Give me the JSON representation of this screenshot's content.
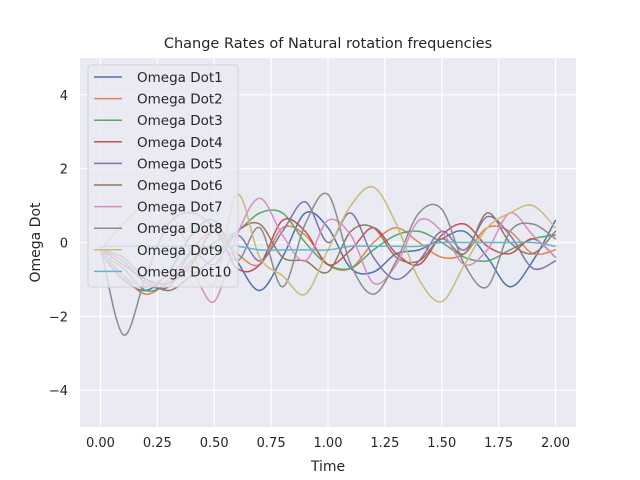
{
  "chart_data": {
    "type": "line",
    "title": "Change Rates of Natural rotation frequencies",
    "xlabel": "Time",
    "ylabel": "Omega Dot",
    "xlim": [
      -0.09,
      2.09
    ],
    "ylim": [
      -5,
      5
    ],
    "xticks": [
      "0.00",
      "0.25",
      "0.50",
      "0.75",
      "1.00",
      "1.25",
      "1.50",
      "1.75",
      "2.00"
    ],
    "xtick_values": [
      0,
      0.25,
      0.5,
      0.75,
      1.0,
      1.25,
      1.5,
      1.75,
      2.0
    ],
    "yticks": [
      "−4",
      "−2",
      "0",
      "2",
      "4"
    ],
    "ytick_values": [
      -4,
      -2,
      0,
      2,
      4
    ],
    "grid": true,
    "legend_position": "top-left",
    "x": [
      0.0,
      0.1,
      0.2,
      0.3,
      0.4,
      0.5,
      0.6,
      0.7,
      0.8,
      0.9,
      1.0,
      1.1,
      1.2,
      1.3,
      1.4,
      1.5,
      1.6,
      1.7,
      1.8,
      1.9,
      2.0
    ],
    "series": [
      {
        "name": "Omega Dot1",
        "color": "#4c72b0",
        "values": [
          -0.3,
          -1.0,
          -1.3,
          -0.8,
          0.2,
          0.6,
          -0.5,
          -1.3,
          -0.4,
          0.8,
          0.4,
          -0.7,
          -0.8,
          -0.3,
          -0.2,
          0.1,
          0.3,
          -0.4,
          -1.2,
          -0.5,
          0.6
        ]
      },
      {
        "name": "Omega Dot2",
        "color": "#dd8452",
        "values": [
          -0.2,
          -0.9,
          -1.4,
          -1.0,
          -0.2,
          0.3,
          -0.3,
          -0.6,
          0.4,
          0.2,
          -0.6,
          -0.7,
          0.0,
          0.4,
          0.0,
          -0.4,
          -0.3,
          0.4,
          0.3,
          -0.3,
          -0.2
        ]
      },
      {
        "name": "Omega Dot3",
        "color": "#55a868",
        "values": [
          -0.3,
          -0.7,
          -1.3,
          -1.1,
          -0.5,
          0.0,
          0.3,
          0.8,
          0.8,
          0.0,
          -0.6,
          -0.7,
          -0.2,
          0.2,
          0.3,
          0.0,
          -0.4,
          -0.5,
          -0.2,
          0.1,
          0.2
        ]
      },
      {
        "name": "Omega Dot4",
        "color": "#c44e52",
        "values": [
          -0.2,
          -0.6,
          -1.0,
          -1.1,
          -0.6,
          0.3,
          -0.7,
          -0.6,
          0.6,
          0.3,
          -0.6,
          -0.2,
          0.4,
          -0.3,
          -0.6,
          0.2,
          0.5,
          -0.1,
          -0.3,
          0.1,
          -0.4
        ]
      },
      {
        "name": "Omega Dot5",
        "color": "#8172b3",
        "values": [
          -0.2,
          -0.5,
          -1.1,
          -1.2,
          -0.3,
          -0.6,
          0.2,
          -0.5,
          0.3,
          1.1,
          0.0,
          0.8,
          -0.4,
          -1.0,
          -0.5,
          0.3,
          -0.2,
          0.7,
          0.2,
          -0.7,
          -0.5
        ]
      },
      {
        "name": "Omega Dot6",
        "color": "#937860",
        "values": [
          -0.2,
          -0.4,
          -1.0,
          -1.3,
          -0.9,
          -0.4,
          0.3,
          0.5,
          -0.4,
          -0.5,
          -0.8,
          0.3,
          0.4,
          -0.4,
          -0.5,
          0.1,
          -0.3,
          0.8,
          0.0,
          -0.3,
          0.3
        ]
      },
      {
        "name": "Omega Dot7",
        "color": "#da8bc3",
        "values": [
          -0.3,
          -0.9,
          -1.2,
          -0.9,
          -0.8,
          -1.6,
          0.2,
          1.2,
          0.2,
          -0.5,
          0.6,
          0.2,
          -1.1,
          -0.6,
          0.6,
          0.3,
          -0.6,
          -0.2,
          0.8,
          0.2,
          -0.4
        ]
      },
      {
        "name": "Omega Dot8",
        "color": "#8c8c8c",
        "values": [
          -0.1,
          -2.5,
          -0.9,
          0.5,
          0.8,
          0.4,
          -0.5,
          0.4,
          -1.2,
          0.5,
          1.3,
          -0.6,
          -1.4,
          -0.5,
          0.8,
          0.9,
          -0.6,
          -1.2,
          0.3,
          0.5,
          0.1
        ]
      },
      {
        "name": "Omega Dot9",
        "color": "#ccb974",
        "values": [
          -0.2,
          0.5,
          1.0,
          0.9,
          -0.3,
          -1.1,
          1.3,
          -0.4,
          -0.9,
          -1.4,
          -0.2,
          1.0,
          1.5,
          0.5,
          -1.0,
          -1.6,
          -0.6,
          0.4,
          0.8,
          1.0,
          0.4
        ]
      },
      {
        "name": "Omega Dot10",
        "color": "#64b5cd",
        "values": [
          -0.1,
          -0.1,
          -0.1,
          -0.1,
          -0.1,
          -0.1,
          -0.1,
          -0.2,
          -0.2,
          -0.2,
          -0.2,
          -0.1,
          -0.1,
          -0.1,
          -0.1,
          0.0,
          0.0,
          0.0,
          0.0,
          0.0,
          -0.1
        ]
      }
    ]
  }
}
